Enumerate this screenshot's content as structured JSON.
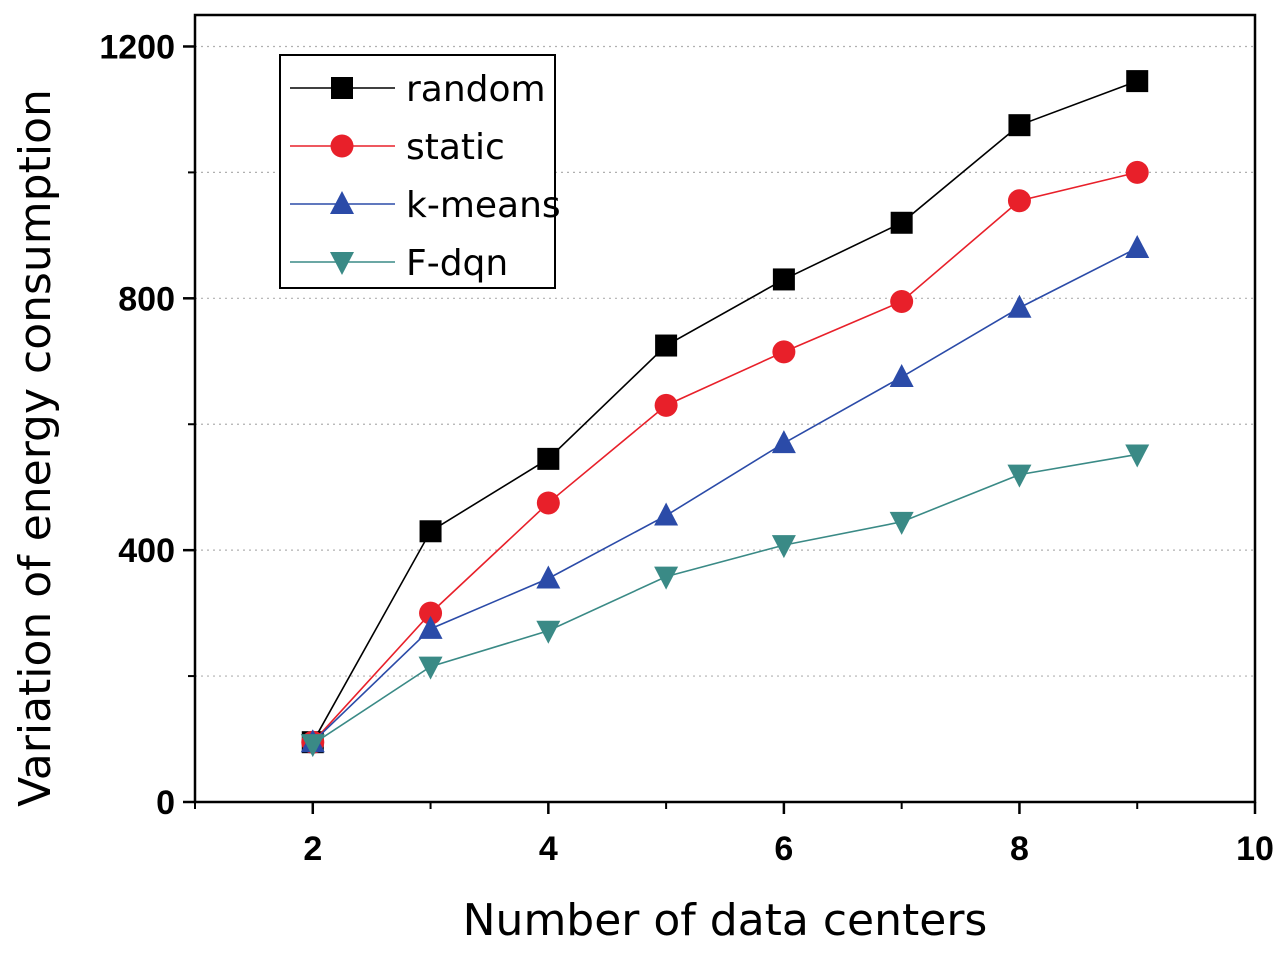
{
  "chart_data": {
    "type": "line",
    "title": "",
    "xlabel": "Number of data centers",
    "ylabel": "Variation of energy consumption",
    "xlim": [
      1,
      10
    ],
    "ylim": [
      0,
      1200
    ],
    "x_ticks": [
      2,
      4,
      6,
      8,
      10
    ],
    "y_ticks": [
      0,
      400,
      800,
      1200
    ],
    "y_minor_ticks": [
      200,
      600,
      1000
    ],
    "grid": "horizontal dotted",
    "legend_position": "top-left",
    "x": [
      2,
      3,
      4,
      5,
      6,
      7,
      8,
      9
    ],
    "series": [
      {
        "name": "random",
        "color": "#000000",
        "marker": "square",
        "values": [
          95,
          430,
          545,
          725,
          830,
          920,
          1075,
          1145
        ]
      },
      {
        "name": "static",
        "color": "#e8202a",
        "marker": "circle",
        "values": [
          95,
          300,
          475,
          630,
          715,
          795,
          955,
          1000
        ]
      },
      {
        "name": "k-means",
        "color": "#2b4ba8",
        "marker": "triangle-up",
        "values": [
          95,
          275,
          355,
          455,
          570,
          675,
          785,
          880
        ]
      },
      {
        "name": "F-dqn",
        "color": "#3a8a86",
        "marker": "triangle-down",
        "values": [
          92,
          215,
          272,
          358,
          408,
          445,
          520,
          552
        ]
      }
    ]
  }
}
